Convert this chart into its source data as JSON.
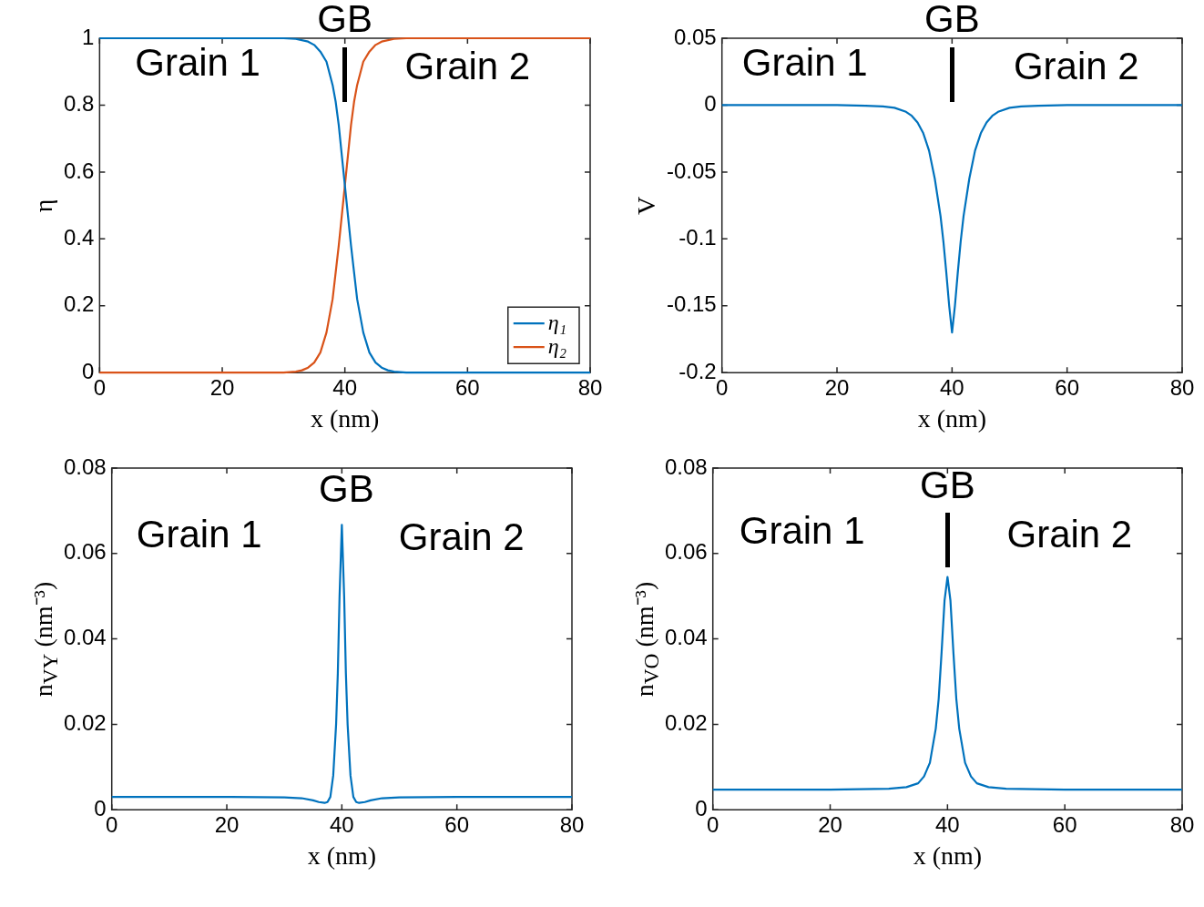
{
  "chart_data": [
    {
      "type": "line",
      "xlabel": "x (nm)",
      "ylabel": "η",
      "xlim": [
        0,
        80
      ],
      "xticks": [
        0,
        20,
        40,
        60,
        80
      ],
      "ylim": [
        0,
        1
      ],
      "yticks": [
        0,
        0.2,
        0.4,
        0.6,
        0.8,
        1
      ],
      "grid": false,
      "legend": "bottom right",
      "marker": "none",
      "line_style": "solid",
      "series": [
        {
          "name": "η₁",
          "color": "#0072bd",
          "x": [
            0,
            10,
            20,
            30,
            32,
            34,
            35,
            36,
            37,
            38,
            38.5,
            39,
            39.5,
            40,
            40.5,
            41,
            41.5,
            42,
            43,
            44,
            45,
            46,
            47,
            48,
            50,
            60,
            70,
            80
          ],
          "values": [
            1,
            1,
            1,
            1,
            0.998,
            0.99,
            0.98,
            0.96,
            0.93,
            0.86,
            0.81,
            0.74,
            0.65,
            0.56,
            0.47,
            0.38,
            0.3,
            0.22,
            0.12,
            0.06,
            0.03,
            0.015,
            0.007,
            0.003,
            0,
            0,
            0,
            0
          ]
        },
        {
          "name": "η₂",
          "color": "#d95319",
          "x": [
            0,
            10,
            20,
            30,
            32,
            33,
            34,
            35,
            36,
            37,
            38,
            38.5,
            39,
            39.5,
            40,
            40.5,
            41,
            41.5,
            42,
            43,
            44,
            45,
            46,
            48,
            50,
            60,
            70,
            80
          ],
          "values": [
            0,
            0,
            0,
            0,
            0.003,
            0.007,
            0.015,
            0.03,
            0.06,
            0.12,
            0.22,
            0.3,
            0.38,
            0.47,
            0.56,
            0.65,
            0.74,
            0.81,
            0.86,
            0.93,
            0.96,
            0.98,
            0.99,
            0.998,
            1,
            1,
            1,
            1
          ]
        }
      ],
      "annotations": [
        "Grain 1",
        "Grain 2",
        "GB"
      ]
    },
    {
      "type": "line",
      "xlabel": "x (nm)",
      "ylabel": "V",
      "xlim": [
        0,
        80
      ],
      "xticks": [
        0,
        20,
        40,
        60,
        80
      ],
      "ylim": [
        -0.2,
        0.05
      ],
      "yticks": [
        -0.2,
        -0.15,
        -0.1,
        -0.05,
        0,
        0.05
      ],
      "grid": false,
      "legend": false,
      "marker": "none",
      "line_style": "solid",
      "series": [
        {
          "color": "#0072bd",
          "x": [
            0,
            10,
            20,
            25,
            28,
            30,
            32,
            33,
            34,
            35,
            36,
            37,
            38,
            38.5,
            39,
            39.5,
            40,
            40.5,
            41,
            41.5,
            42,
            43,
            44,
            45,
            46,
            47,
            48,
            50,
            52,
            55,
            60,
            70,
            80
          ],
          "values": [
            0,
            0,
            0,
            -0.0005,
            -0.001,
            -0.002,
            -0.005,
            -0.008,
            -0.013,
            -0.021,
            -0.034,
            -0.055,
            -0.083,
            -0.102,
            -0.125,
            -0.15,
            -0.17,
            -0.15,
            -0.125,
            -0.102,
            -0.083,
            -0.055,
            -0.034,
            -0.021,
            -0.013,
            -0.008,
            -0.005,
            -0.002,
            -0.001,
            -0.0005,
            0,
            0,
            0
          ]
        }
      ],
      "annotations": [
        "Grain 1",
        "Grain 2",
        "GB"
      ]
    },
    {
      "type": "line",
      "xlabel": "x (nm)",
      "ylabel": "n$_{VY}$ (nm⁻³)",
      "xlim": [
        0,
        80
      ],
      "xticks": [
        0,
        20,
        40,
        60,
        80
      ],
      "ylim": [
        0,
        0.08
      ],
      "yticks": [
        0,
        0.02,
        0.04,
        0.06,
        0.08
      ],
      "grid": false,
      "legend": false,
      "marker": "none",
      "line_style": "solid",
      "series": [
        {
          "color": "#0072bd",
          "x": [
            0,
            10,
            20,
            30,
            33,
            35,
            36,
            37,
            37.5,
            38,
            38.5,
            39,
            39.3,
            39.6,
            40,
            40.4,
            40.7,
            41,
            41.5,
            42,
            42.5,
            43,
            44,
            45,
            47,
            50,
            60,
            70,
            80
          ],
          "values": [
            0.003,
            0.003,
            0.003,
            0.0029,
            0.0027,
            0.0022,
            0.0018,
            0.0016,
            0.0018,
            0.003,
            0.008,
            0.02,
            0.032,
            0.05,
            0.0667,
            0.05,
            0.032,
            0.02,
            0.008,
            0.003,
            0.0018,
            0.0016,
            0.0018,
            0.0022,
            0.0027,
            0.0029,
            0.003,
            0.003,
            0.003
          ]
        }
      ],
      "annotations": [
        "Grain 1",
        "Grain 2",
        "GB"
      ]
    },
    {
      "type": "line",
      "xlabel": "x (nm)",
      "ylabel": "n$_{VO}$ (nm⁻³)",
      "xlim": [
        0,
        80
      ],
      "xticks": [
        0,
        20,
        40,
        60,
        80
      ],
      "ylim": [
        0,
        0.08
      ],
      "yticks": [
        0,
        0.02,
        0.04,
        0.06,
        0.08
      ],
      "grid": false,
      "legend": false,
      "marker": "none",
      "line_style": "solid",
      "series": [
        {
          "color": "#0072bd",
          "x": [
            0,
            10,
            20,
            30,
            33,
            35,
            36,
            37,
            38,
            38.5,
            39,
            39.5,
            40,
            40.5,
            41,
            41.5,
            42,
            43,
            44,
            45,
            47,
            50,
            60,
            70,
            80
          ],
          "values": [
            0.0047,
            0.0047,
            0.0047,
            0.0049,
            0.0053,
            0.0062,
            0.0078,
            0.011,
            0.019,
            0.026,
            0.037,
            0.049,
            0.0545,
            0.049,
            0.037,
            0.026,
            0.019,
            0.011,
            0.0078,
            0.0062,
            0.0053,
            0.0049,
            0.0047,
            0.0047,
            0.0047
          ]
        }
      ],
      "annotations": [
        "Grain 1",
        "Grain 2",
        "GB"
      ]
    }
  ]
}
